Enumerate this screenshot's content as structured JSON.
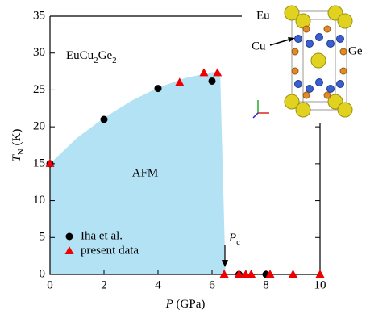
{
  "chart_data": {
    "type": "scatter",
    "xlabel": [
      "P",
      " (GPa)"
    ],
    "ylabel": [
      "T",
      "N",
      " (K)"
    ],
    "xlim": [
      0,
      10
    ],
    "xticks": [
      0,
      2,
      4,
      6,
      8,
      10
    ],
    "ylim": [
      0,
      35
    ],
    "yticks": [
      0,
      5,
      10,
      15,
      20,
      25,
      30,
      35
    ],
    "region": {
      "label": "AFM",
      "color": "#b3e2f5",
      "x": [
        0,
        1,
        2,
        3,
        4,
        5,
        6,
        6.3,
        6.5
      ],
      "y": [
        15,
        18.5,
        21.2,
        23.5,
        25.3,
        26.6,
        27.4,
        27.5,
        0
      ]
    },
    "series": [
      {
        "name": "Iha et al.",
        "color": "#000000",
        "marker": "circle",
        "x": [
          0,
          2,
          4,
          6,
          7,
          8
        ],
        "values": [
          15,
          21,
          25.2,
          26.2,
          0,
          0
        ]
      },
      {
        "name": "present data",
        "color": "#ee0000",
        "marker": "triangle",
        "x": [
          0,
          4.8,
          5.7,
          6.2,
          6.45,
          7,
          7.25,
          7.45,
          8.15,
          9,
          10
        ],
        "values": [
          15,
          26,
          27.3,
          27.3,
          0,
          0,
          0,
          0,
          0,
          0,
          0
        ]
      }
    ],
    "compound": [
      "EuCu",
      "2",
      "Ge",
      "2"
    ],
    "critical_pressure": [
      "P",
      "c"
    ],
    "inset_labels": [
      "Eu",
      "Cu",
      "Ge"
    ]
  }
}
